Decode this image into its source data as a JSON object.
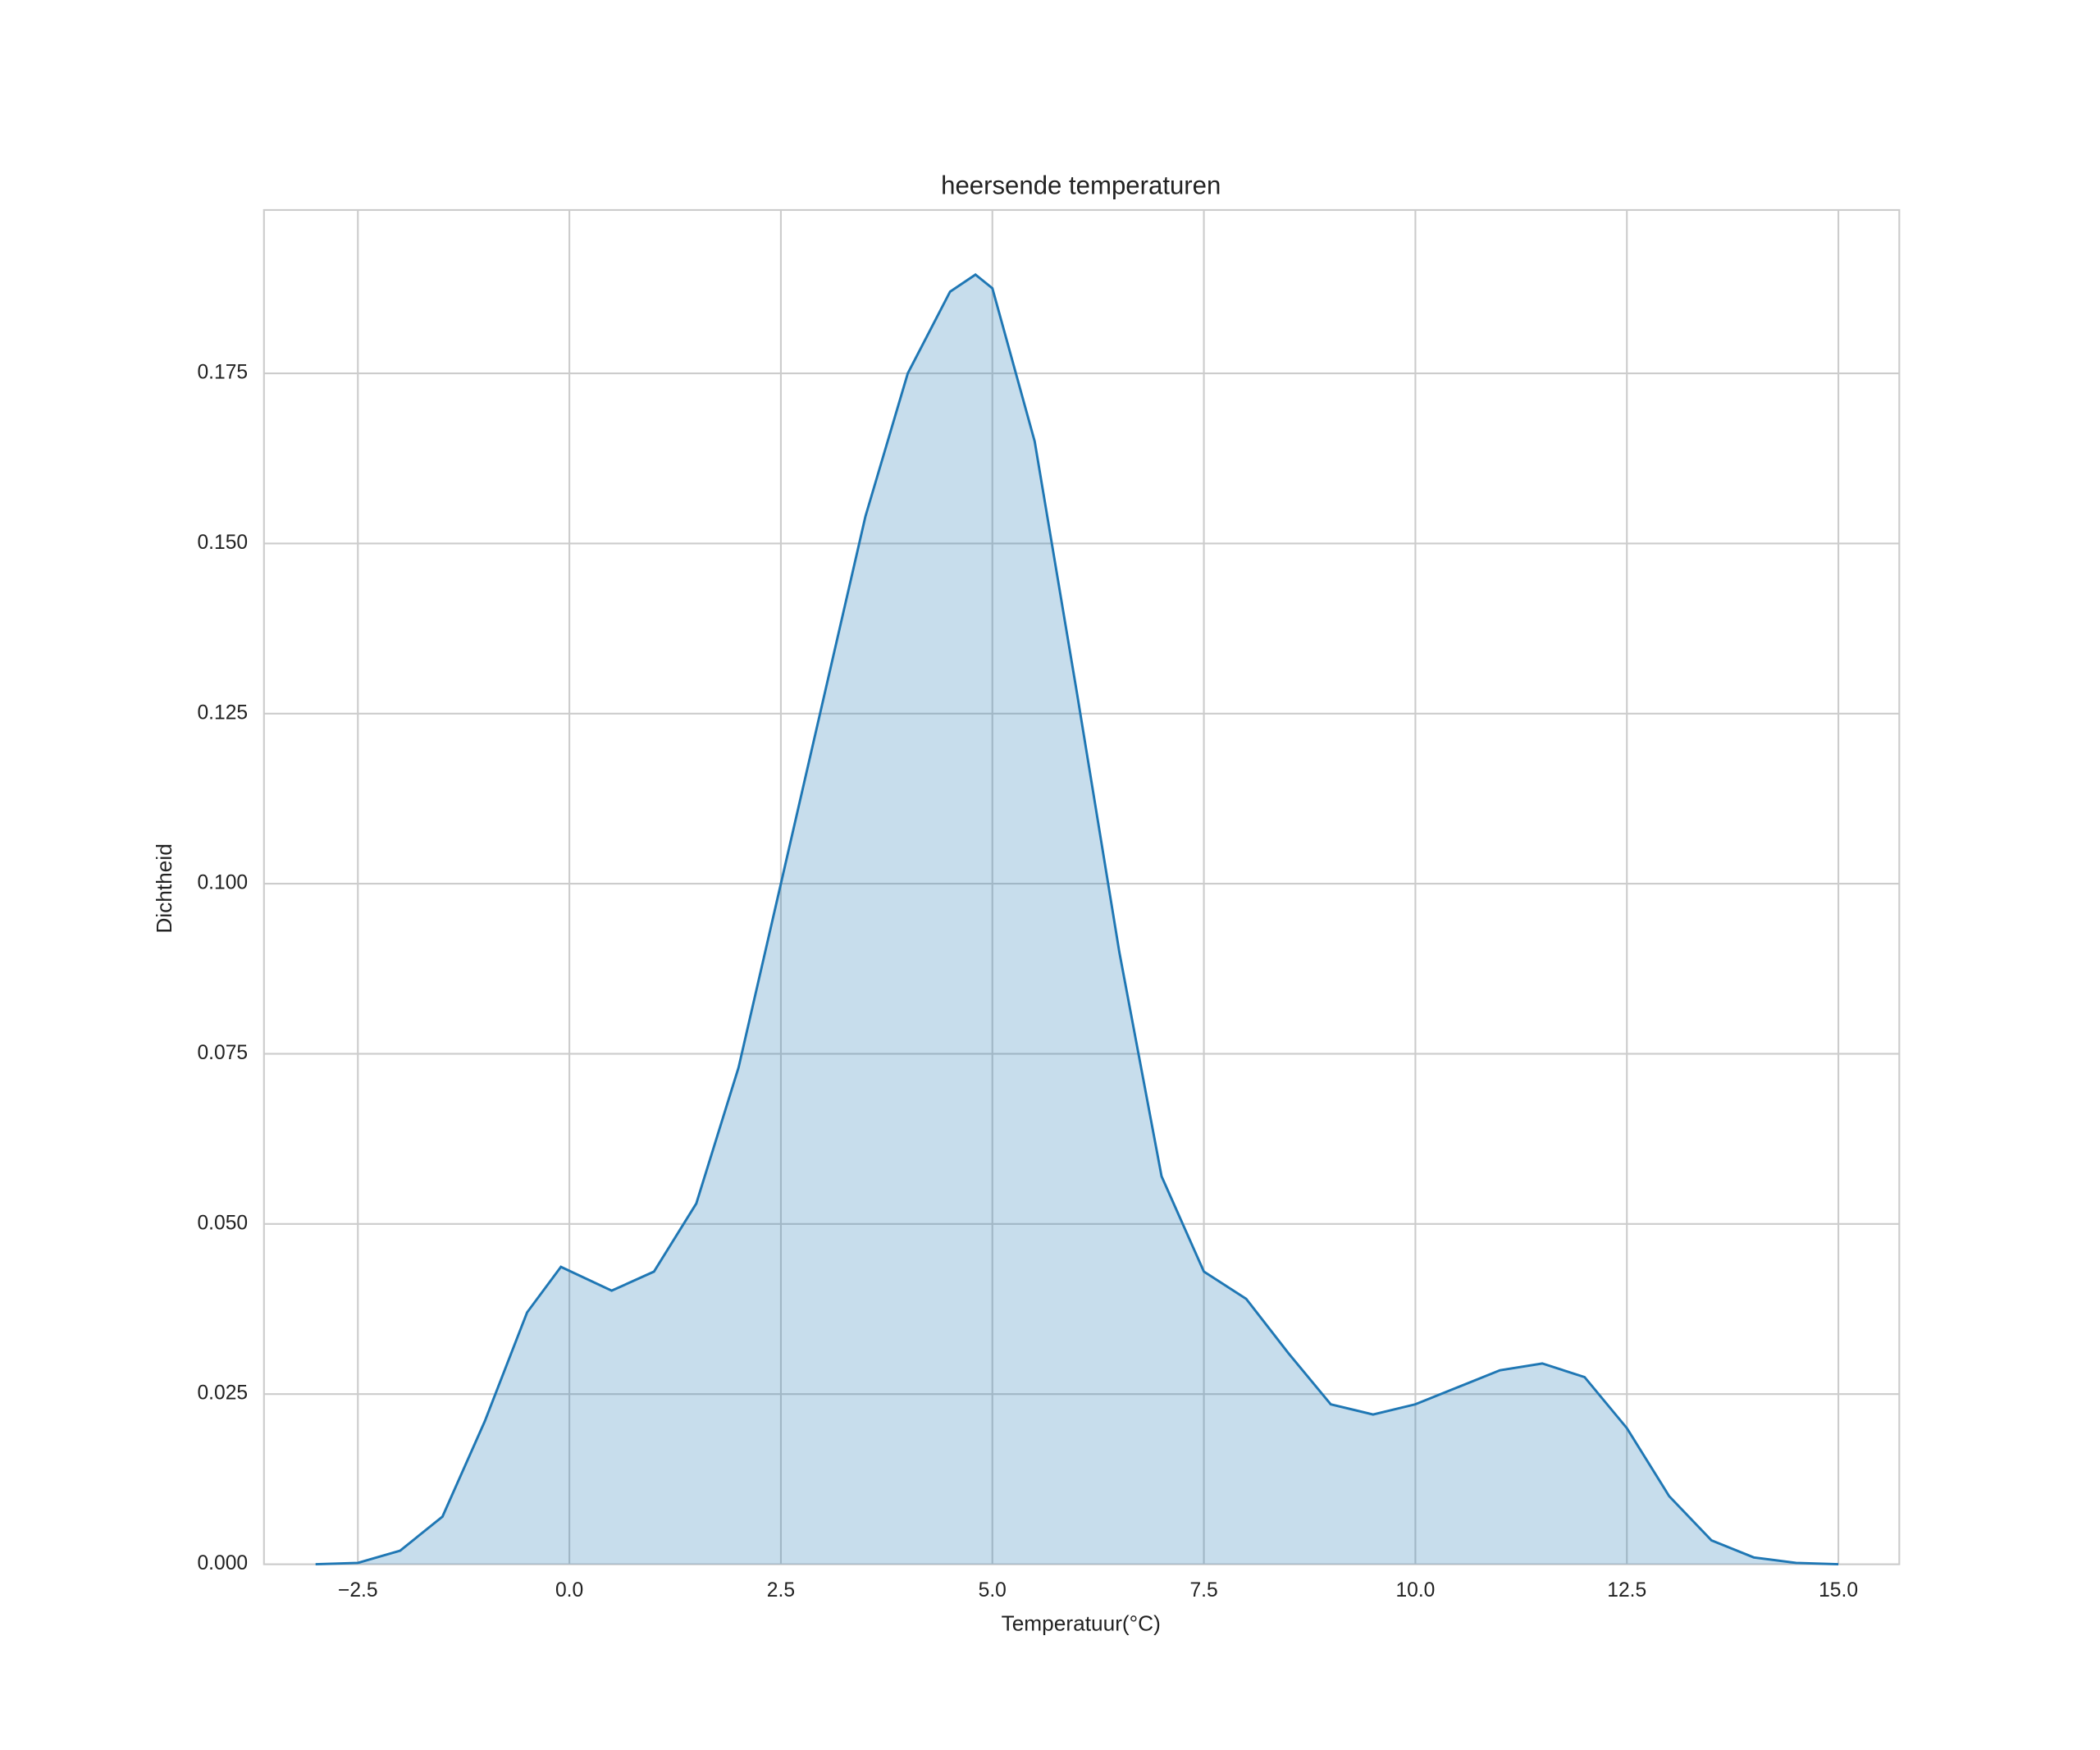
{
  "chart_data": {
    "type": "area",
    "title": "heersende temperaturen",
    "x_label": "Temperatuur(°C)",
    "y_label": "Dichtheid",
    "x": [
      -3.0,
      -2.5,
      -2.0,
      -1.5,
      -1.0,
      -0.5,
      -0.1,
      0.5,
      1.0,
      1.5,
      2.0,
      2.5,
      3.0,
      3.5,
      4.0,
      4.5,
      4.8,
      5.0,
      5.5,
      6.0,
      6.5,
      7.0,
      7.5,
      8.0,
      8.5,
      9.0,
      9.5,
      10.0,
      10.5,
      11.0,
      11.5,
      12.0,
      12.5,
      13.0,
      13.5,
      14.0,
      14.5,
      15.0
    ],
    "series": [
      {
        "color": "#1f77b4",
        "values": [
          0.0,
          0.0002,
          0.002,
          0.007,
          0.021,
          0.037,
          0.0437,
          0.0402,
          0.043,
          0.053,
          0.073,
          0.1,
          0.127,
          0.154,
          0.175,
          0.187,
          0.1895,
          0.1875,
          0.165,
          0.128,
          0.09,
          0.057,
          0.043,
          0.039,
          0.031,
          0.0235,
          0.022,
          0.0235,
          0.026,
          0.0285,
          0.0295,
          0.0275,
          0.02,
          0.01,
          0.0035,
          0.001,
          0.0002,
          0.0
        ]
      }
    ],
    "xlim": [
      -3.61,
      15.72
    ],
    "ylim": [
      0,
      0.199
    ],
    "xticks": [
      {
        "value": -2.5,
        "label": "−2.5"
      },
      {
        "value": 0,
        "label": "0.0"
      },
      2.5,
      {
        "value": 5,
        "label": "5.0"
      },
      7.5,
      {
        "value": 10,
        "label": "10.0"
      },
      12.5,
      {
        "value": 15,
        "label": "15.0"
      }
    ],
    "yticks": [
      {
        "value": 0,
        "label": "0.000"
      },
      0.025,
      {
        "value": 0.05,
        "label": "0.050"
      },
      0.075,
      {
        "value": 0.1,
        "label": "0.100"
      },
      0.125,
      {
        "value": 0.15,
        "label": "0.150"
      },
      0.175
    ],
    "grid": true
  }
}
